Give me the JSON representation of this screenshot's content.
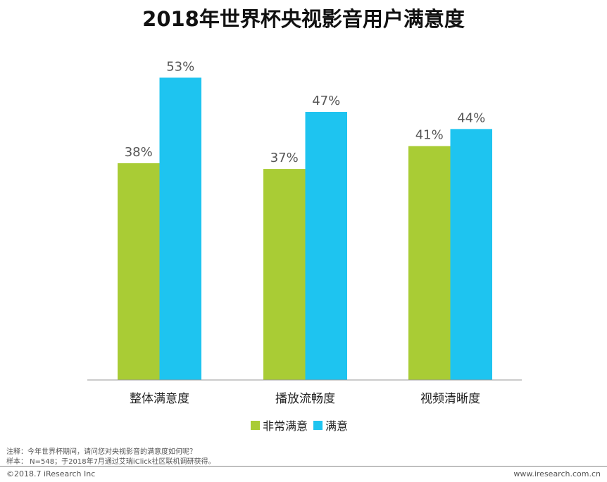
{
  "chart_data": {
    "type": "bar",
    "title": "2018年世界杯央视影音用户满意度",
    "categories": [
      "整体满意度",
      "播放流畅度",
      "视频清晰度"
    ],
    "series": [
      {
        "name": "非常满意",
        "values": [
          38,
          37,
          41
        ],
        "color": "#a9cc35"
      },
      {
        "name": "满意",
        "values": [
          53,
          47,
          44
        ],
        "color": "#1ec4f0"
      }
    ],
    "value_suffix": "%",
    "ylim": [
      0,
      66
    ],
    "grid": false,
    "legend": "bottom"
  },
  "notes": {
    "note": "注释：今年世界杯期间，请问您对央视影音的满意度如何呢？",
    "sample": "样本： N=548；于2018年7月通过艾瑞iClick社区联机调研获得。"
  },
  "footer": {
    "copyright": "©2018.7 iResearch Inc",
    "website": "www.iresearch.com.cn"
  }
}
